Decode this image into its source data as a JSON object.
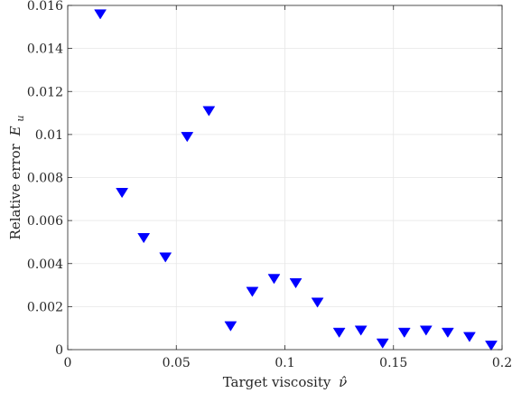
{
  "chart_data": {
    "type": "scatter",
    "title": "",
    "xlabel": "Target viscosity",
    "xlabel_symbol": "ν̂",
    "ylabel": "Relative error",
    "ylabel_symbol": "E",
    "ylabel_subscript": "u",
    "xlim": [
      0,
      0.2
    ],
    "ylim": [
      0,
      0.016
    ],
    "xticks": [
      0,
      0.05,
      0.1,
      0.15,
      0.2
    ],
    "xtick_labels": [
      "0",
      "0.05",
      "0.1",
      "0.15",
      "0.2"
    ],
    "yticks": [
      0,
      0.002,
      0.004,
      0.006,
      0.008,
      0.01,
      0.012,
      0.014,
      0.016
    ],
    "ytick_labels": [
      "0",
      "0.002",
      "0.004",
      "0.006",
      "0.008",
      "0.01",
      "0.012",
      "0.014",
      "0.016"
    ],
    "grid": true,
    "marker": "triangle-down",
    "marker_color": "#0000ff",
    "series": [
      {
        "x": [
          0.015,
          0.025,
          0.035,
          0.045,
          0.055,
          0.065,
          0.075,
          0.085,
          0.095,
          0.105,
          0.115,
          0.125,
          0.135,
          0.145,
          0.155,
          0.165,
          0.175,
          0.185,
          0.195
        ],
        "y": [
          0.0156,
          0.0073,
          0.0052,
          0.0043,
          0.0099,
          0.0111,
          0.0011,
          0.0027,
          0.0033,
          0.0031,
          0.0022,
          0.0008,
          0.0009,
          0.0003,
          0.0008,
          0.0009,
          0.0008,
          0.0006,
          0.0002
        ]
      }
    ]
  }
}
